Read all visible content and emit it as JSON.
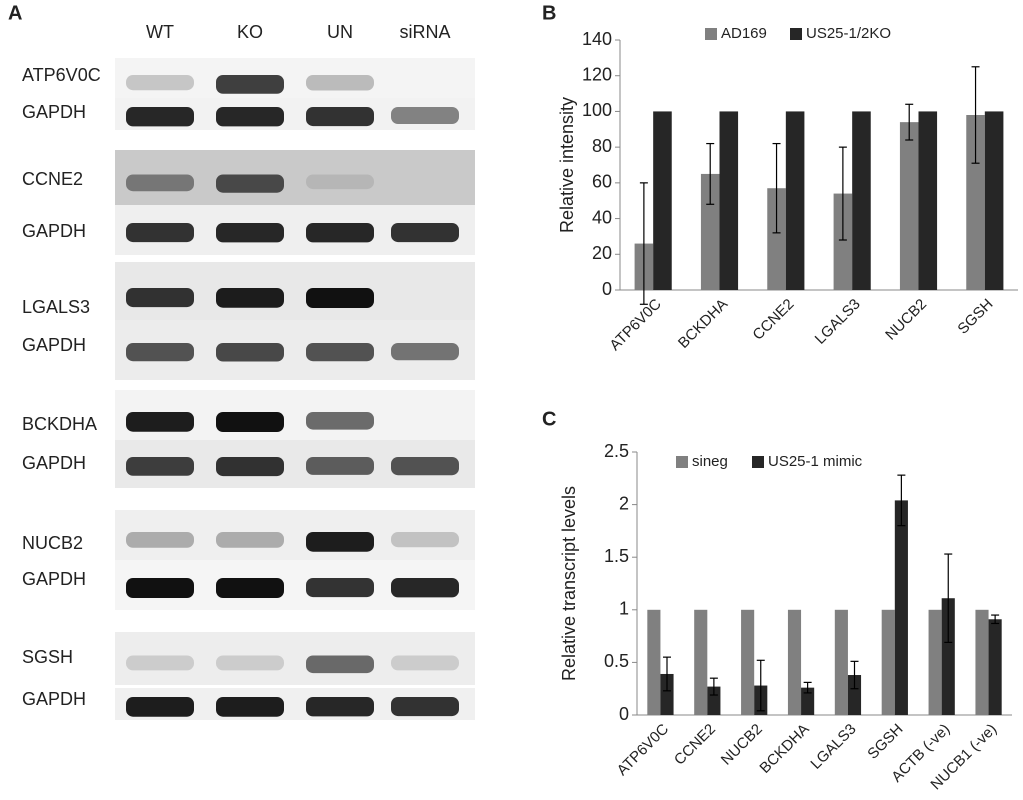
{
  "panel_a": {
    "label": "A",
    "lanes": [
      "WT",
      "KO",
      "UN",
      "siRNA"
    ],
    "rows": [
      "ATP6V0C",
      "GAPDH",
      "CCNE2",
      "GAPDH",
      "LGALS3",
      "GAPDH",
      "BCKDHA",
      "GAPDH",
      "NUCB2",
      "GAPDH",
      "SGSH",
      "GAPDH"
    ]
  },
  "chart_data": [
    {
      "type": "bar",
      "panel_label": "B",
      "y_label": "Relative intensity",
      "categories": [
        "ATP6V0C",
        "BCKDHA",
        "CCNE2",
        "LGALS3",
        "NUCB2",
        "SGSH"
      ],
      "series": [
        {
          "name": "AD169",
          "color": "#808080",
          "values": [
            26,
            65,
            57,
            54,
            94,
            98
          ],
          "errors": [
            34,
            17,
            25,
            26,
            10,
            27
          ]
        },
        {
          "name": "US25-1/2KO",
          "color": "#262626",
          "values": [
            100,
            100,
            100,
            100,
            100,
            100
          ]
        }
      ],
      "ylim": [
        0,
        140
      ],
      "yticks": [
        0,
        20,
        40,
        60,
        80,
        100,
        120,
        140
      ],
      "grid": false
    },
    {
      "type": "bar",
      "panel_label": "C",
      "y_label": "Relative transcript levels",
      "categories": [
        "ATP6V0C",
        "CCNE2",
        "NUCB2",
        "BCKDHA",
        "LGALS3",
        "SGSH",
        "ACTB (-ve)",
        "NUCB1 (-ve)"
      ],
      "series": [
        {
          "name": "sineg",
          "color": "#808080",
          "values": [
            1,
            1,
            1,
            1,
            1,
            1,
            1,
            1
          ]
        },
        {
          "name": "US25-1 mimic",
          "color": "#262626",
          "values": [
            0.39,
            0.27,
            0.28,
            0.26,
            0.38,
            2.04,
            1.11,
            0.91
          ],
          "errors": [
            0.16,
            0.08,
            0.24,
            0.05,
            0.13,
            0.24,
            0.42,
            0.04
          ]
        }
      ],
      "ylim": [
        0,
        2.5
      ],
      "yticks": [
        0,
        0.5,
        1,
        1.5,
        2,
        2.5
      ],
      "grid": false
    }
  ]
}
